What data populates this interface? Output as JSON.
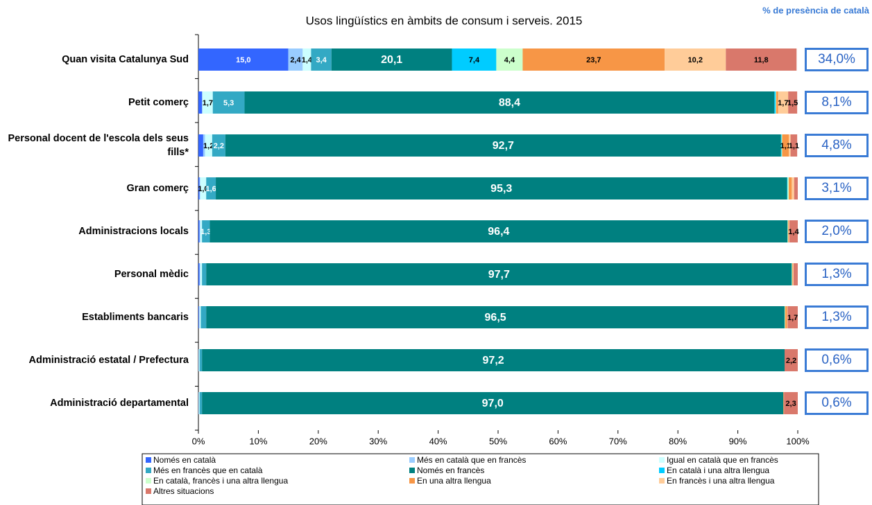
{
  "chart_data": {
    "type": "stacked-bar-horizontal",
    "title": "Usos lingüístics en àmbits de consum i serveis. 2015",
    "categories": [
      "Quan visita Catalunya Sud",
      "Petit comerç",
      "Personal docent de l'escola dels seus fills*",
      "Gran comerç",
      "Administracions locals",
      "Personal mèdic",
      "Establiments bancaris",
      "Administració estatal / Prefectura",
      "Administració departamental"
    ],
    "xlim": [
      0,
      100
    ],
    "xticks": [
      {
        "value": 0,
        "label": "0%"
      },
      {
        "value": 10,
        "label": "10%"
      },
      {
        "value": 20,
        "label": "20%"
      },
      {
        "value": 30,
        "label": "30%"
      },
      {
        "value": 40,
        "label": "40%"
      },
      {
        "value": 50,
        "label": "50%"
      },
      {
        "value": 60,
        "label": "60%"
      },
      {
        "value": 70,
        "label": "70%"
      },
      {
        "value": 80,
        "label": "80%"
      },
      {
        "value": 90,
        "label": "90%"
      },
      {
        "value": 100,
        "label": "100%"
      }
    ],
    "series": [
      {
        "name": "Només en català",
        "color": "#3366ff",
        "values": [
          15.0,
          0.6,
          0.8,
          0.2,
          0.2,
          0.2,
          0.1,
          0,
          0
        ],
        "value_labels": [
          "15,0",
          null,
          null,
          null,
          null,
          null,
          null,
          null,
          null
        ]
      },
      {
        "name": "Més en català que en francès",
        "color": "#99ccff",
        "values": [
          2.4,
          0.1,
          0.3,
          0.1,
          0.1,
          0.1,
          0.1,
          0.1,
          0.1
        ],
        "value_labels": [
          "2,4",
          null,
          null,
          null,
          null,
          null,
          null,
          null,
          null
        ]
      },
      {
        "name": "Igual en català que en francès",
        "color": "#ccffff",
        "values": [
          1.4,
          1.7,
          1.2,
          1.0,
          0.3,
          0.3,
          0.2,
          0.1,
          0.1
        ],
        "value_labels": [
          "1,4",
          "1,7",
          "1,2",
          "1,0",
          null,
          null,
          null,
          null,
          null
        ]
      },
      {
        "name": "Més en francès que en català",
        "color": "#33a9c4",
        "values": [
          3.4,
          5.3,
          2.2,
          1.6,
          1.3,
          0.7,
          0.9,
          0.4,
          0.4
        ],
        "value_labels": [
          "3,4",
          "5,3",
          "2,2",
          "1,6",
          "1,3",
          null,
          null,
          null,
          null
        ]
      },
      {
        "name": "Només en francès",
        "color": "#008080",
        "values": [
          20.1,
          88.4,
          92.7,
          95.3,
          96.4,
          97.7,
          96.5,
          97.2,
          97.0
        ],
        "value_labels": [
          "20,1",
          "88,4",
          "92,7",
          "95,3",
          "96,4",
          "97,7",
          "96,5",
          "97,2",
          "97,0"
        ]
      },
      {
        "name": "En català i una altra llengua",
        "color": "#00ccff",
        "values": [
          7.4,
          0.2,
          0.1,
          0.1,
          0,
          0,
          0,
          0,
          0
        ],
        "value_labels": [
          "7,4",
          null,
          null,
          null,
          null,
          null,
          null,
          null,
          null
        ]
      },
      {
        "name": "En català, francès i una altra llengua",
        "color": "#ccffcc",
        "values": [
          4.4,
          0.1,
          0.1,
          0.2,
          0.1,
          0.1,
          0.1,
          0,
          0
        ],
        "value_labels": [
          "4,4",
          null,
          null,
          null,
          null,
          null,
          null,
          null,
          null
        ]
      },
      {
        "name": "En una altra llengua",
        "color": "#f79646",
        "values": [
          23.7,
          0.3,
          1.1,
          0.5,
          0.1,
          0.1,
          0.3,
          0,
          0.1
        ],
        "value_labels": [
          "23,7",
          null,
          "1,1",
          null,
          null,
          null,
          null,
          null,
          null
        ]
      },
      {
        "name": "En francès i una altra llengua",
        "color": "#ffcc99",
        "values": [
          10.2,
          1.7,
          0.3,
          0.4,
          0.1,
          0.1,
          0.1,
          0,
          0
        ],
        "value_labels": [
          "10,2",
          "1,7",
          null,
          null,
          null,
          null,
          null,
          null,
          null
        ]
      },
      {
        "name": "Altres situacions",
        "color": "#d9786b",
        "values": [
          11.8,
          1.5,
          1.1,
          0.6,
          1.4,
          0.7,
          1.7,
          2.2,
          2.3
        ],
        "value_labels": [
          "11,8",
          "1,5",
          "1,1",
          null,
          "1,4",
          null,
          "1,7",
          "2,2",
          "2,3"
        ]
      }
    ],
    "presence": {
      "title": "% de presència de català",
      "values": [
        34.0,
        8.1,
        4.8,
        3.1,
        2.0,
        1.3,
        1.3,
        0.6,
        0.6
      ],
      "value_labels": [
        "34,0%",
        "8,1%",
        "4,8%",
        "3,1%",
        "2,0%",
        "1,3%",
        "1,3%",
        "0,6%",
        "0,6%"
      ]
    }
  }
}
